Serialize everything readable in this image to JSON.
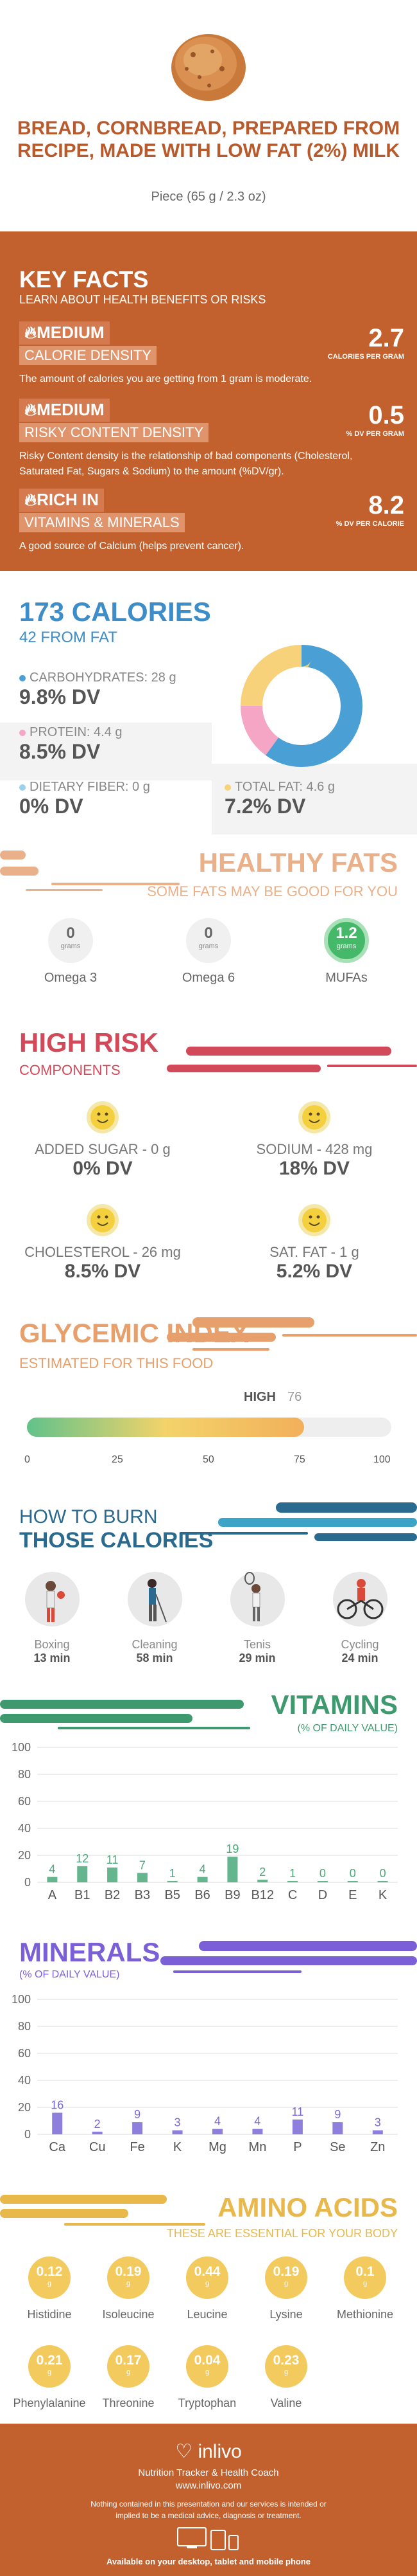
{
  "header": {
    "title": "BREAD, CORNBREAD, PREPARED FROM RECIPE, MADE WITH LOW FAT (2%) MILK",
    "serving": "Piece (65 g / 2.3 oz)"
  },
  "key_facts": {
    "title": "KEY FACTS",
    "subtitle": "LEARN ABOUT HEALTH BENEFITS OR RISKS",
    "items": [
      {
        "level": "MEDIUM",
        "name": "CALORIE DENSITY",
        "description": "The amount of calories you are getting from 1 gram is moderate.",
        "value": "2.7",
        "unit": "CALORIES PER GRAM",
        "icon": "flame-icon"
      },
      {
        "level": "MEDIUM",
        "name": "RISKY CONTENT DENSITY",
        "description": "Risky Content density is the relationship of bad components (Cholesterol, Saturated Fat, Sugars & Sodium) to the amount (%DV/gr).",
        "value": "0.5",
        "unit": "% DV PER GRAM",
        "icon": "flame-icon"
      },
      {
        "level": "RICH IN",
        "name": "VITAMINS & MINERALS",
        "description": "A good source of Calcium (helps prevent cancer).",
        "value": "8.2",
        "unit": "% DV PER CALORIE",
        "icon": "flame-icon"
      }
    ]
  },
  "calories": {
    "title": "173 CALORIES",
    "subtitle": "42 FROM FAT",
    "nutrients": [
      {
        "label": "CARBOHYDRATES: 28 g",
        "dv": "9.8% DV",
        "color": "#4a9fd5",
        "fraction": 0.6
      },
      {
        "label": "PROTEIN: 4.4 g",
        "dv": "8.5% DV",
        "color": "#f4a6c4",
        "fraction": 0.15
      },
      {
        "label": "DIETARY FIBER: 0 g",
        "dv": "0% DV",
        "color": "#9bd1ee",
        "fraction": 0.0
      },
      {
        "label": "TOTAL FAT: 4.6 g",
        "dv": "7.2% DV",
        "color": "#f8d27a",
        "fraction": 0.25
      }
    ]
  },
  "healthy_fats": {
    "title": "HEALTHY FATS",
    "subtitle": "SOME FATS MAY BE GOOD FOR YOU",
    "items": [
      {
        "name": "Omega 3",
        "value": "0",
        "unit": "grams",
        "color": "#f0f0f0"
      },
      {
        "name": "Omega 6",
        "value": "0",
        "unit": "grams",
        "color": "#f0f0f0"
      },
      {
        "name": "MUFAs",
        "value": "1.2",
        "unit": "grams",
        "color": "#46b86a"
      }
    ]
  },
  "high_risk": {
    "title": "HIGH RISK",
    "subtitle": "COMPONENTS",
    "items": [
      {
        "label": "ADDED SUGAR - 0 g",
        "dv": "0% DV"
      },
      {
        "label": "SODIUM - 428 mg",
        "dv": "18% DV"
      },
      {
        "label": "CHOLESTEROL - 26 mg",
        "dv": "8.5% DV"
      },
      {
        "label": "SAT. FAT - 1 g",
        "dv": "5.2% DV"
      }
    ]
  },
  "glycemic": {
    "title": "GLYCEMIC INDEX",
    "subtitle": "ESTIMATED FOR THIS FOOD",
    "level": "HIGH",
    "value": 76,
    "ticks": [
      "0",
      "25",
      "50",
      "75",
      "100"
    ]
  },
  "burn": {
    "title_line1": "HOW TO BURN",
    "title_line2": "THOSE CALORIES",
    "items": [
      {
        "activity": "Boxing",
        "time": "13 min",
        "icon": "boxing-icon"
      },
      {
        "activity": "Cleaning",
        "time": "58 min",
        "icon": "cleaning-icon"
      },
      {
        "activity": "Tenis",
        "time": "29 min",
        "icon": "tennis-icon"
      },
      {
        "activity": "Cycling",
        "time": "24 min",
        "icon": "cycling-icon"
      }
    ]
  },
  "chart_data": [
    {
      "type": "bar",
      "title": "VITAMINS",
      "subtitle": "(% OF DAILY VALUE)",
      "categories": [
        "A",
        "B1",
        "B2",
        "B3",
        "B5",
        "B6",
        "B9",
        "B12",
        "C",
        "D",
        "E",
        "K"
      ],
      "values": [
        4,
        12,
        11,
        7,
        1,
        4,
        19,
        2,
        1,
        0,
        0,
        0
      ],
      "yticks": [
        0,
        20,
        40,
        60,
        80,
        100
      ],
      "ylim": [
        0,
        100
      ],
      "color": "#4aa87a",
      "title_color": "#3e9a6e"
    },
    {
      "type": "bar",
      "title": "MINERALS",
      "subtitle": "(% OF DAILY VALUE)",
      "categories": [
        "Ca",
        "Cu",
        "Fe",
        "K",
        "Mg",
        "Mn",
        "P",
        "Se",
        "Zn"
      ],
      "values": [
        16,
        2,
        9,
        3,
        4,
        4,
        11,
        9,
        3
      ],
      "yticks": [
        0,
        20,
        40,
        60,
        80,
        100
      ],
      "ylim": [
        0,
        100
      ],
      "color": "#7b68d6",
      "title_color": "#7b5fd6"
    }
  ],
  "amino_acids": {
    "title": "AMINO ACIDS",
    "subtitle": "THESE ARE ESSENTIAL FOR YOUR BODY",
    "unit": "g",
    "items": [
      {
        "name": "Histidine",
        "value": "0.12"
      },
      {
        "name": "Isoleucine",
        "value": "0.19"
      },
      {
        "name": "Leucine",
        "value": "0.44"
      },
      {
        "name": "Lysine",
        "value": "0.19"
      },
      {
        "name": "Methionine",
        "value": "0.1"
      },
      {
        "name": "Phenylalanine",
        "value": "0.21"
      },
      {
        "name": "Threonine",
        "value": "0.17"
      },
      {
        "name": "Tryptophan",
        "value": "0.04"
      },
      {
        "name": "Valine",
        "value": "0.23"
      }
    ]
  },
  "footer": {
    "logo": "inlivo",
    "tagline": "Nutrition Tracker & Health Coach",
    "website": "www.inlivo.com",
    "disclaimer": "Nothing contained in this presentation and our services is intended or implied to be a medical advice, diagnosis or treatment.",
    "available": "Available on your desktop, tablet and mobile phone"
  }
}
